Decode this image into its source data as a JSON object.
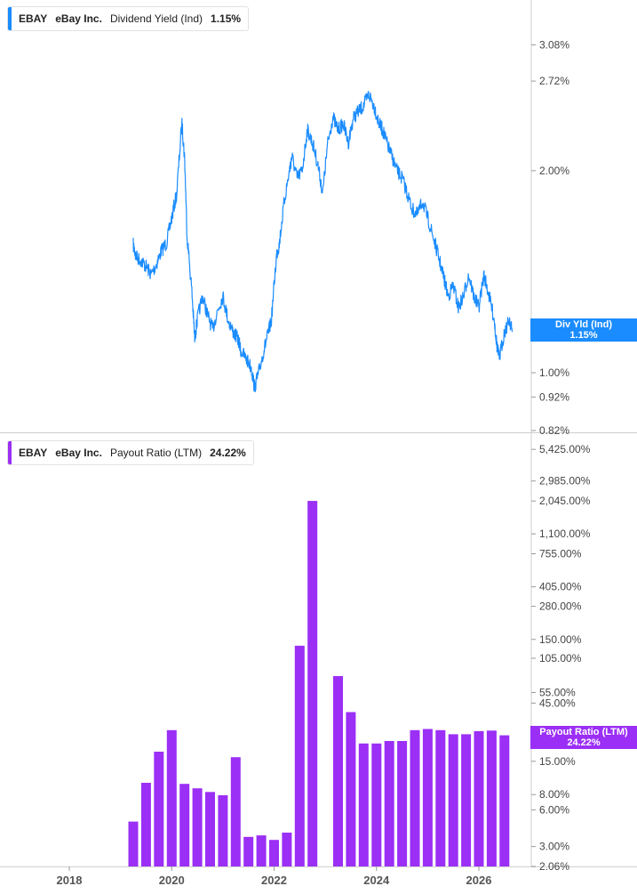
{
  "panels": [
    {
      "legend": {
        "ticker": "EBAY",
        "company": "eBay Inc.",
        "metric": "Dividend Yield (Ind)",
        "value": "1.15%"
      },
      "flag": {
        "label": "Div Yld (Ind)",
        "value": "1.15%"
      },
      "color": "#1a8cff"
    },
    {
      "legend": {
        "ticker": "EBAY",
        "company": "eBay Inc.",
        "metric": "Payout Ratio (LTM)",
        "value": "24.22%"
      },
      "flag": {
        "label": "Payout Ratio (LTM)",
        "value": "24.22%"
      },
      "color": "#9b2ff5"
    }
  ],
  "chart_data": [
    {
      "type": "line",
      "scale": "log",
      "ylim": [
        0.82,
        3.4
      ],
      "y_ticks": [
        "3.08%",
        "2.72%",
        "2.00%",
        "1.00%",
        "0.92%",
        "0.82%"
      ],
      "x_ticks": [
        "2018",
        "2020",
        "2022",
        "2024",
        "2026"
      ],
      "series": [
        {
          "x": [
            2019.25,
            2019.3,
            2019.4,
            2019.5,
            2019.6,
            2019.7,
            2019.8,
            2019.9,
            2020.0,
            2020.1,
            2020.2,
            2020.25,
            2020.3,
            2020.4,
            2020.45,
            2020.5,
            2020.6,
            2020.7,
            2020.8,
            2020.9,
            2021.0,
            2021.1,
            2021.2,
            2021.3,
            2021.35,
            2021.45,
            2021.55,
            2021.62,
            2021.7,
            2021.8,
            2021.88,
            2021.95,
            2022.05,
            2022.1,
            2022.2,
            2022.3,
            2022.35,
            2022.45,
            2022.55,
            2022.65,
            2022.75,
            2022.85,
            2022.95,
            2023.05,
            2023.15,
            2023.25,
            2023.35,
            2023.45,
            2023.55,
            2023.65,
            2023.75,
            2023.85,
            2023.95,
            2024.05,
            2024.12,
            2024.2,
            2024.3,
            2024.4,
            2024.5,
            2024.6,
            2024.7,
            2024.8,
            2024.9,
            2025.0,
            2025.1,
            2025.2,
            2025.3,
            2025.4,
            2025.5,
            2025.6,
            2025.7,
            2025.8,
            2025.9,
            2026.0,
            2026.1,
            2026.2,
            2026.3,
            2026.35,
            2026.4,
            2026.5,
            2026.6,
            2026.65
          ],
          "y": [
            1.55,
            1.49,
            1.47,
            1.44,
            1.4,
            1.45,
            1.52,
            1.56,
            1.7,
            1.85,
            2.35,
            2.1,
            1.6,
            1.3,
            1.12,
            1.2,
            1.3,
            1.22,
            1.16,
            1.24,
            1.3,
            1.2,
            1.15,
            1.12,
            1.08,
            1.05,
            1.02,
            0.95,
            1.0,
            1.08,
            1.14,
            1.2,
            1.5,
            1.55,
            1.8,
            2.0,
            2.1,
            1.95,
            2.0,
            2.3,
            2.2,
            2.05,
            1.85,
            2.2,
            2.4,
            2.3,
            2.35,
            2.2,
            2.4,
            2.45,
            2.5,
            2.6,
            2.5,
            2.35,
            2.3,
            2.2,
            2.1,
            2.0,
            1.95,
            1.85,
            1.75,
            1.72,
            1.8,
            1.7,
            1.6,
            1.5,
            1.4,
            1.3,
            1.35,
            1.25,
            1.3,
            1.4,
            1.3,
            1.25,
            1.4,
            1.3,
            1.2,
            1.1,
            1.05,
            1.15,
            1.2,
            1.15
          ]
        }
      ]
    },
    {
      "type": "bar",
      "scale": "log",
      "ylim": [
        2.06,
        7000
      ],
      "y_ticks": [
        "5,425.00%",
        "2,985.00%",
        "2,045.00%",
        "1,100.00%",
        "755.00%",
        "405.00%",
        "280.00%",
        "150.00%",
        "105.00%",
        "55.00%",
        "45.00%",
        "15.00%",
        "8.00%",
        "6.00%",
        "3.00%",
        "2.06%"
      ],
      "x_ticks": [
        "2018",
        "2020",
        "2022",
        "2024",
        "2026"
      ],
      "series": [
        {
          "x": [
            2019.25,
            2019.5,
            2019.75,
            2020.0,
            2020.25,
            2020.5,
            2020.75,
            2021.0,
            2021.25,
            2021.5,
            2021.75,
            2022.0,
            2022.25,
            2022.5,
            2022.75,
            2023.25,
            2023.5,
            2023.75,
            2024.0,
            2024.25,
            2024.5,
            2024.75,
            2025.0,
            2025.25,
            2025.5,
            2025.75,
            2026.0,
            2026.25,
            2026.5
          ],
          "y": [
            4.8,
            10.0,
            18.0,
            27.0,
            9.8,
            9.0,
            8.4,
            7.9,
            16.2,
            3.6,
            3.7,
            3.4,
            3.9,
            133.0,
            2050.0,
            75.0,
            38.0,
            21.0,
            21.0,
            22.0,
            22.0,
            27.0,
            27.6,
            27.0,
            25.0,
            25.0,
            26.5,
            26.8,
            24.5
          ]
        }
      ]
    }
  ]
}
